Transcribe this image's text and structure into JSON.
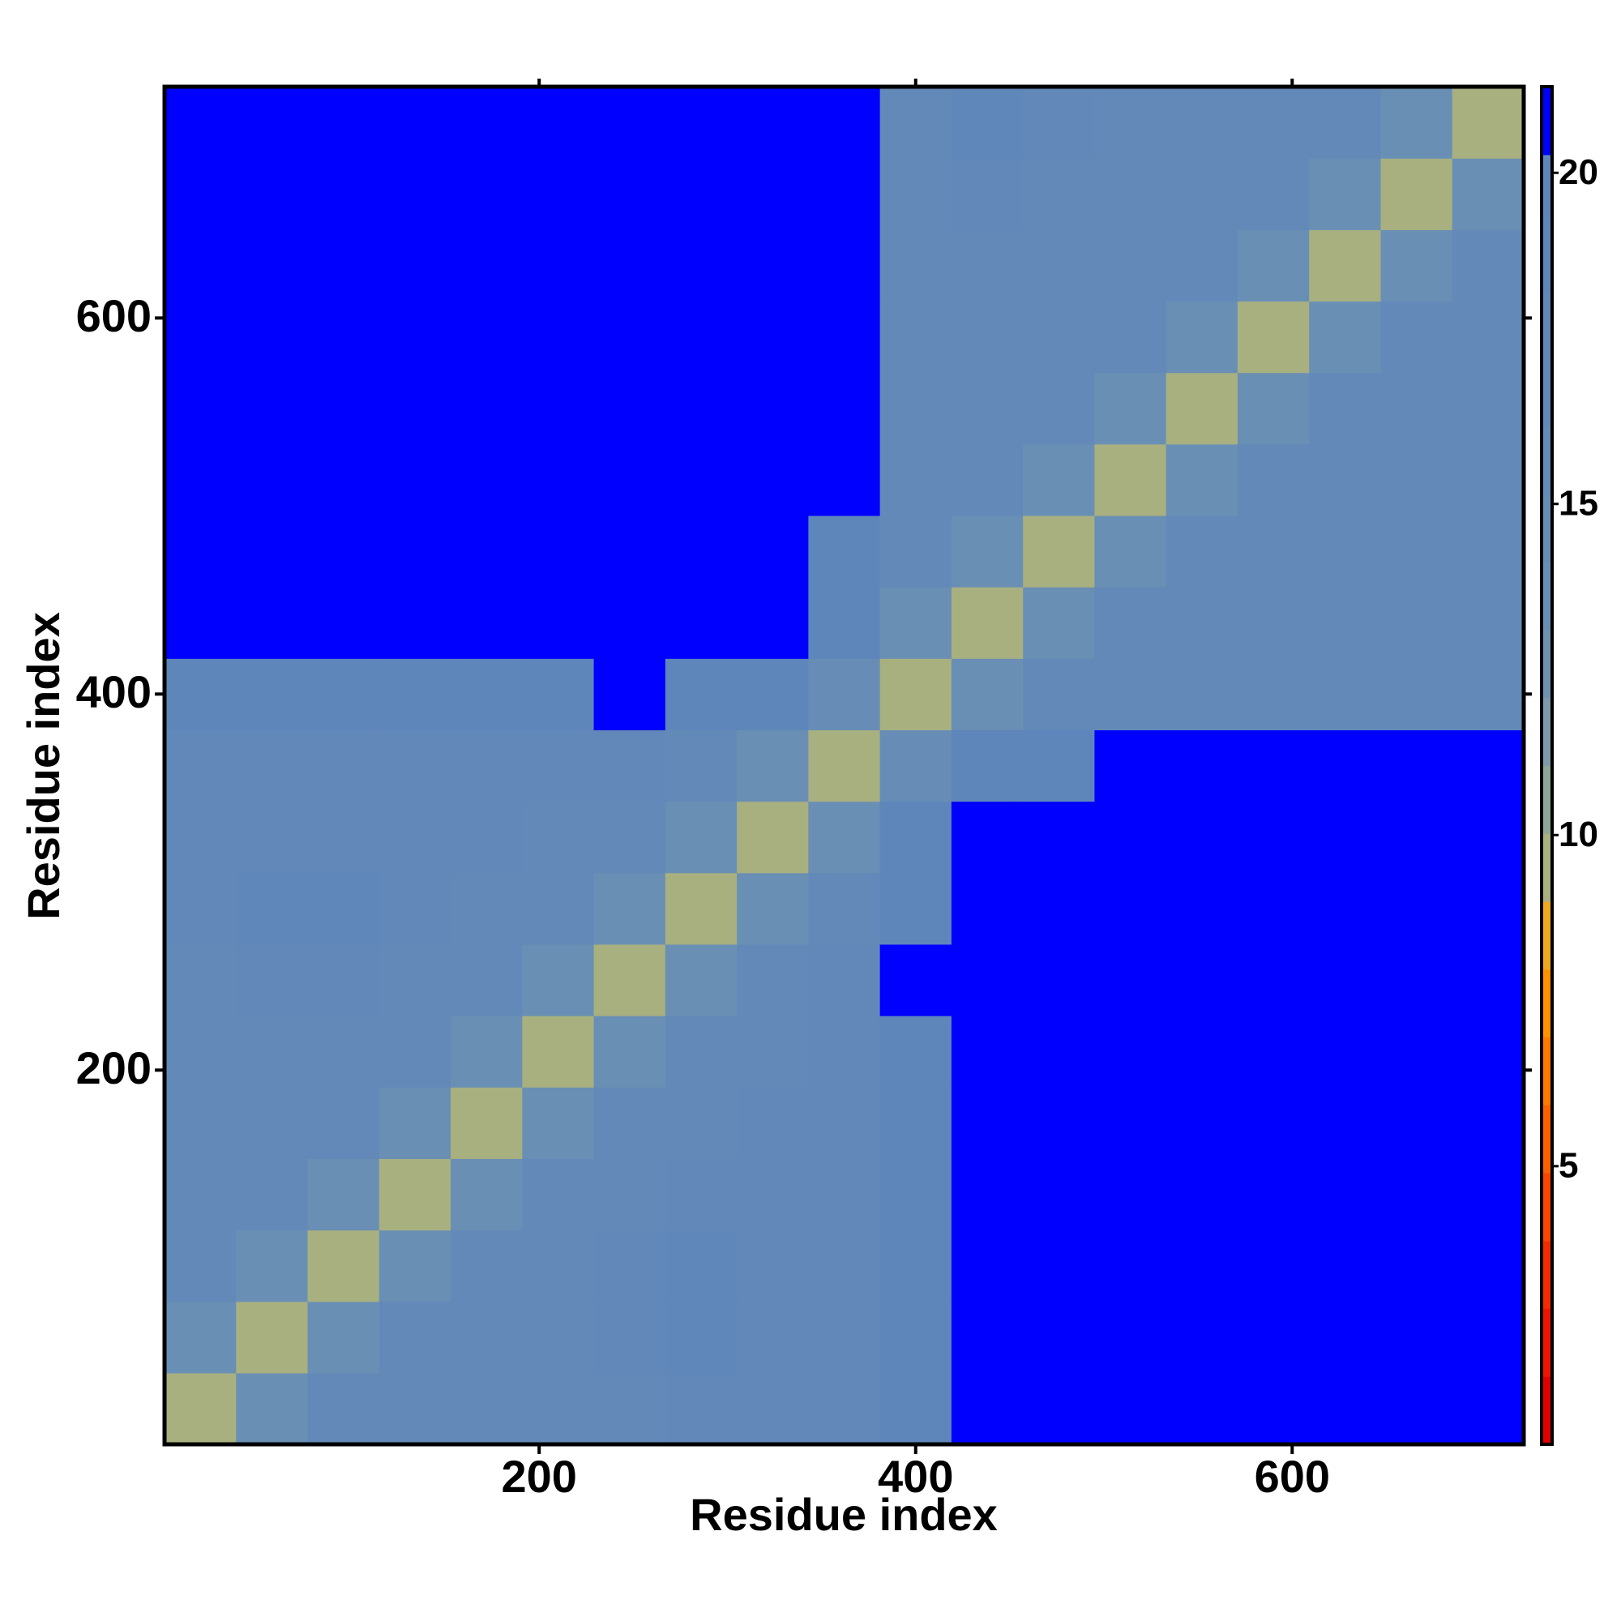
{
  "chart_data": {
    "type": "heatmap",
    "x_label": "Residue index",
    "y_label": "Residue index",
    "bins": [
      1,
      39,
      77,
      115,
      153,
      191,
      229,
      267,
      305,
      343,
      381,
      419,
      457,
      495,
      533,
      571,
      609,
      647,
      685,
      723
    ],
    "xlim": [
      1,
      723
    ],
    "ylim": [
      1,
      723
    ],
    "xticks": [
      200,
      400,
      600
    ],
    "yticks": [
      200,
      400,
      600
    ],
    "zlim": [
      0.8,
      21.3
    ],
    "zticks": [
      5,
      10,
      15,
      20
    ],
    "colors": [
      "#e00000",
      "#ee1500",
      "#f52a00",
      "#fa4500",
      "#fd6000",
      "#ff7800",
      "#ff9000",
      "#f0a820",
      "#a8b080",
      "#8ea59a",
      "#7c9aa8",
      "#6f92b0",
      "#6a8fb4",
      "#678db6",
      "#658bb7",
      "#6389b8",
      "#6188b9",
      "#5f87b9",
      "#5e86ba",
      "#0000ff"
    ],
    "z": [
      [
        10,
        14,
        17,
        17,
        17,
        17,
        17,
        18,
        18,
        18,
        20,
        21,
        21,
        21,
        21,
        21,
        21,
        21,
        21
      ],
      [
        14,
        10,
        14,
        17,
        17,
        17,
        18,
        19,
        18,
        18,
        20,
        21,
        21,
        21,
        21,
        21,
        21,
        21,
        21
      ],
      [
        17,
        14,
        10,
        14,
        17,
        17,
        18,
        19,
        18,
        18,
        20,
        21,
        21,
        21,
        21,
        21,
        21,
        21,
        21
      ],
      [
        17,
        17,
        14,
        10,
        14,
        17,
        17,
        18,
        18,
        18,
        20,
        21,
        21,
        21,
        21,
        21,
        21,
        21,
        21
      ],
      [
        17,
        17,
        17,
        14,
        10,
        14,
        17,
        17,
        18,
        18,
        20,
        21,
        21,
        21,
        21,
        21,
        21,
        21,
        21
      ],
      [
        17,
        17,
        17,
        17,
        14,
        10,
        14,
        17,
        17,
        18,
        20,
        21,
        21,
        21,
        21,
        21,
        21,
        21,
        21
      ],
      [
        17,
        18,
        18,
        17,
        17,
        14,
        10,
        14,
        17,
        18,
        21,
        21,
        21,
        21,
        21,
        21,
        21,
        21,
        21
      ],
      [
        18,
        19,
        19,
        18,
        17,
        17,
        14,
        10,
        14,
        17,
        20,
        21,
        21,
        21,
        21,
        21,
        21,
        21,
        21
      ],
      [
        18,
        18,
        18,
        18,
        18,
        17,
        17,
        14,
        10,
        14,
        20,
        21,
        21,
        21,
        21,
        21,
        21,
        21,
        21
      ],
      [
        18,
        18,
        18,
        18,
        18,
        18,
        18,
        17,
        14,
        10,
        15,
        20,
        20,
        21,
        21,
        21,
        21,
        21,
        21
      ],
      [
        20,
        20,
        20,
        20,
        20,
        20,
        21,
        20,
        20,
        15,
        10,
        14,
        17,
        17,
        17,
        17,
        17,
        17,
        17
      ],
      [
        21,
        21,
        21,
        21,
        21,
        21,
        21,
        21,
        21,
        20,
        14,
        10,
        14,
        17,
        17,
        17,
        17,
        17,
        17
      ],
      [
        21,
        21,
        21,
        21,
        21,
        21,
        21,
        21,
        21,
        20,
        17,
        14,
        10,
        14,
        17,
        17,
        17,
        17,
        17
      ],
      [
        21,
        21,
        21,
        21,
        21,
        21,
        21,
        21,
        21,
        21,
        17,
        17,
        14,
        10,
        14,
        17,
        17,
        17,
        17
      ],
      [
        21,
        21,
        21,
        21,
        21,
        21,
        21,
        21,
        21,
        21,
        17,
        17,
        17,
        14,
        10,
        14,
        17,
        17,
        17
      ],
      [
        21,
        21,
        21,
        21,
        21,
        21,
        21,
        21,
        21,
        21,
        17,
        17,
        17,
        17,
        14,
        10,
        14,
        17,
        17
      ],
      [
        21,
        21,
        21,
        21,
        21,
        21,
        21,
        21,
        21,
        21,
        17,
        17,
        17,
        17,
        17,
        14,
        10,
        14,
        17
      ],
      [
        21,
        21,
        21,
        21,
        21,
        21,
        21,
        21,
        21,
        21,
        17,
        18,
        17,
        17,
        17,
        17,
        14,
        10,
        14
      ],
      [
        21,
        21,
        21,
        21,
        21,
        21,
        21,
        21,
        21,
        21,
        17,
        19,
        18,
        17,
        17,
        17,
        17,
        14,
        10
      ]
    ]
  }
}
